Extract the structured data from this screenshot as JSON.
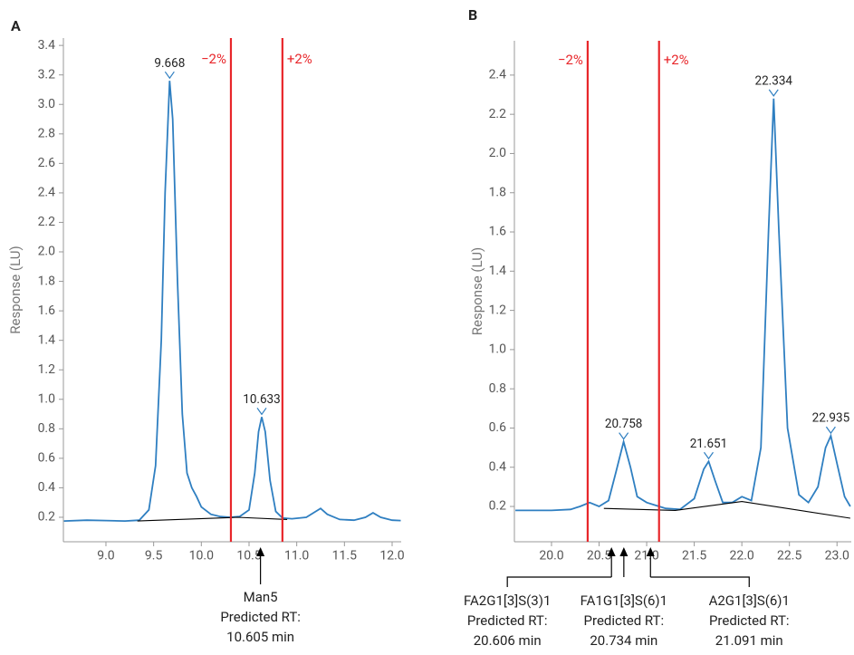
{
  "chart_data": [
    {
      "type": "line",
      "panel": "A",
      "ylabel": "Response (LU)",
      "xlim": [
        8.554,
        12.095
      ],
      "ylim": [
        0.034,
        3.45
      ],
      "xticks": [
        {
          "value": 9,
          "label": "9.0"
        },
        9.5,
        {
          "value": 10,
          "label": "10.0"
        },
        10.5,
        {
          "value": 11,
          "label": "11.0"
        },
        11.5,
        {
          "value": 12,
          "label": "12.0"
        }
      ],
      "yticks": [
        0.2,
        0.4,
        0.6,
        0.8,
        {
          "value": 1,
          "label": "1.0"
        },
        1.2,
        1.4,
        1.6,
        1.8,
        {
          "value": 2,
          "label": "2.0"
        },
        2.2,
        2.4,
        2.6,
        2.8,
        {
          "value": 3,
          "label": "3.0"
        },
        3.2,
        3.4
      ],
      "series": [
        {
          "color": "#2f7fc1",
          "x": [
            8.56,
            8.8,
            9.0,
            9.2,
            9.35,
            9.45,
            9.52,
            9.58,
            9.62,
            9.668,
            9.7,
            9.75,
            9.8,
            9.85,
            9.9,
            9.95,
            10.0,
            10.1,
            10.2,
            10.3,
            10.4,
            10.5,
            10.56,
            10.6,
            10.633,
            10.67,
            10.72,
            10.78,
            10.85,
            10.95,
            11.1,
            11.2,
            11.25,
            11.32,
            11.45,
            11.6,
            11.72,
            11.8,
            11.88,
            12.0,
            12.09
          ],
          "values": [
            0.175,
            0.18,
            0.178,
            0.175,
            0.18,
            0.25,
            0.55,
            1.4,
            2.4,
            3.16,
            2.9,
            1.8,
            0.9,
            0.5,
            0.4,
            0.34,
            0.27,
            0.22,
            0.205,
            0.2,
            0.205,
            0.25,
            0.5,
            0.78,
            0.88,
            0.78,
            0.45,
            0.24,
            0.195,
            0.19,
            0.2,
            0.24,
            0.26,
            0.22,
            0.185,
            0.18,
            0.2,
            0.23,
            0.2,
            0.18,
            0.178
          ]
        }
      ],
      "baseline": {
        "color": "#000000",
        "x": [
          9.33,
          10.38,
          10.9
        ],
        "values": [
          0.175,
          0.2,
          0.185
        ]
      },
      "peaks": [
        {
          "x": 9.668,
          "y": 3.16,
          "label": "9.668"
        },
        {
          "x": 10.633,
          "y": 0.88,
          "label": "10.633"
        }
      ],
      "rt_window": {
        "color": "#e8262a",
        "lines": [
          {
            "x": 10.31,
            "label": "−2%"
          },
          {
            "x": 10.85,
            "label": "+2%"
          }
        ]
      },
      "callouts": [
        {
          "x": 10.62,
          "lines": [
            "Man5",
            "Predicted RT:",
            "10.605 min"
          ]
        }
      ]
    },
    {
      "type": "line",
      "panel": "B",
      "ylabel": "Response (LU)",
      "xlim": [
        19.61,
        23.15
      ],
      "ylim": [
        0.02,
        2.575
      ],
      "xticks": [
        {
          "value": 20,
          "label": "20.0"
        },
        20.5,
        {
          "value": 21,
          "label": "21.0"
        },
        21.5,
        {
          "value": 22,
          "label": "22.0"
        },
        22.5,
        {
          "value": 23,
          "label": "23.0"
        }
      ],
      "yticks": [
        0.2,
        0.4,
        0.6,
        0.8,
        {
          "value": 1,
          "label": "1.0"
        },
        1.2,
        1.4,
        1.6,
        1.8,
        {
          "value": 2,
          "label": "2.0"
        },
        2.2,
        2.4
      ],
      "series": [
        {
          "color": "#2f7fc1",
          "x": [
            19.62,
            20.0,
            20.2,
            20.3,
            20.4,
            20.5,
            20.6,
            20.68,
            20.758,
            20.83,
            20.9,
            21.0,
            21.1,
            21.2,
            21.35,
            21.5,
            21.6,
            21.651,
            21.72,
            21.8,
            21.9,
            22.0,
            22.1,
            22.2,
            22.28,
            22.334,
            22.39,
            22.48,
            22.6,
            22.7,
            22.8,
            22.88,
            22.935,
            23.0,
            23.08,
            23.14
          ],
          "values": [
            0.18,
            0.18,
            0.185,
            0.2,
            0.22,
            0.2,
            0.23,
            0.38,
            0.53,
            0.4,
            0.25,
            0.22,
            0.205,
            0.19,
            0.185,
            0.24,
            0.39,
            0.43,
            0.33,
            0.22,
            0.22,
            0.25,
            0.23,
            0.5,
            1.6,
            2.28,
            1.6,
            0.6,
            0.26,
            0.22,
            0.3,
            0.5,
            0.56,
            0.42,
            0.25,
            0.2
          ]
        }
      ],
      "baseline": {
        "color": "#000000",
        "x": [
          20.55,
          21.3,
          22.0,
          23.14
        ],
        "values": [
          0.19,
          0.18,
          0.225,
          0.14
        ]
      },
      "peaks": [
        {
          "x": 20.758,
          "y": 0.53,
          "label": "20.758"
        },
        {
          "x": 21.651,
          "y": 0.43,
          "label": "21.651"
        },
        {
          "x": 22.334,
          "y": 2.28,
          "label": "22.334"
        },
        {
          "x": 22.935,
          "y": 0.56,
          "label": "22.935"
        }
      ],
      "rt_window": {
        "color": "#e8262a",
        "lines": [
          {
            "x": 20.38,
            "label": "−2%"
          },
          {
            "x": 21.13,
            "label": "+2%"
          }
        ]
      },
      "callouts": [
        {
          "x": 20.63,
          "lines": [
            "FA2G1[3]S(3)1",
            "Predicted RT:",
            "20.606 min"
          ]
        },
        {
          "x": 20.76,
          "lines": [
            "FA1G1[3]S(6)1",
            "Predicted RT:",
            "20.734 min"
          ]
        },
        {
          "x": 21.04,
          "lines": [
            "A2G1[3]S(6)1",
            "Predicted RT:",
            "21.091 min"
          ]
        }
      ]
    }
  ]
}
